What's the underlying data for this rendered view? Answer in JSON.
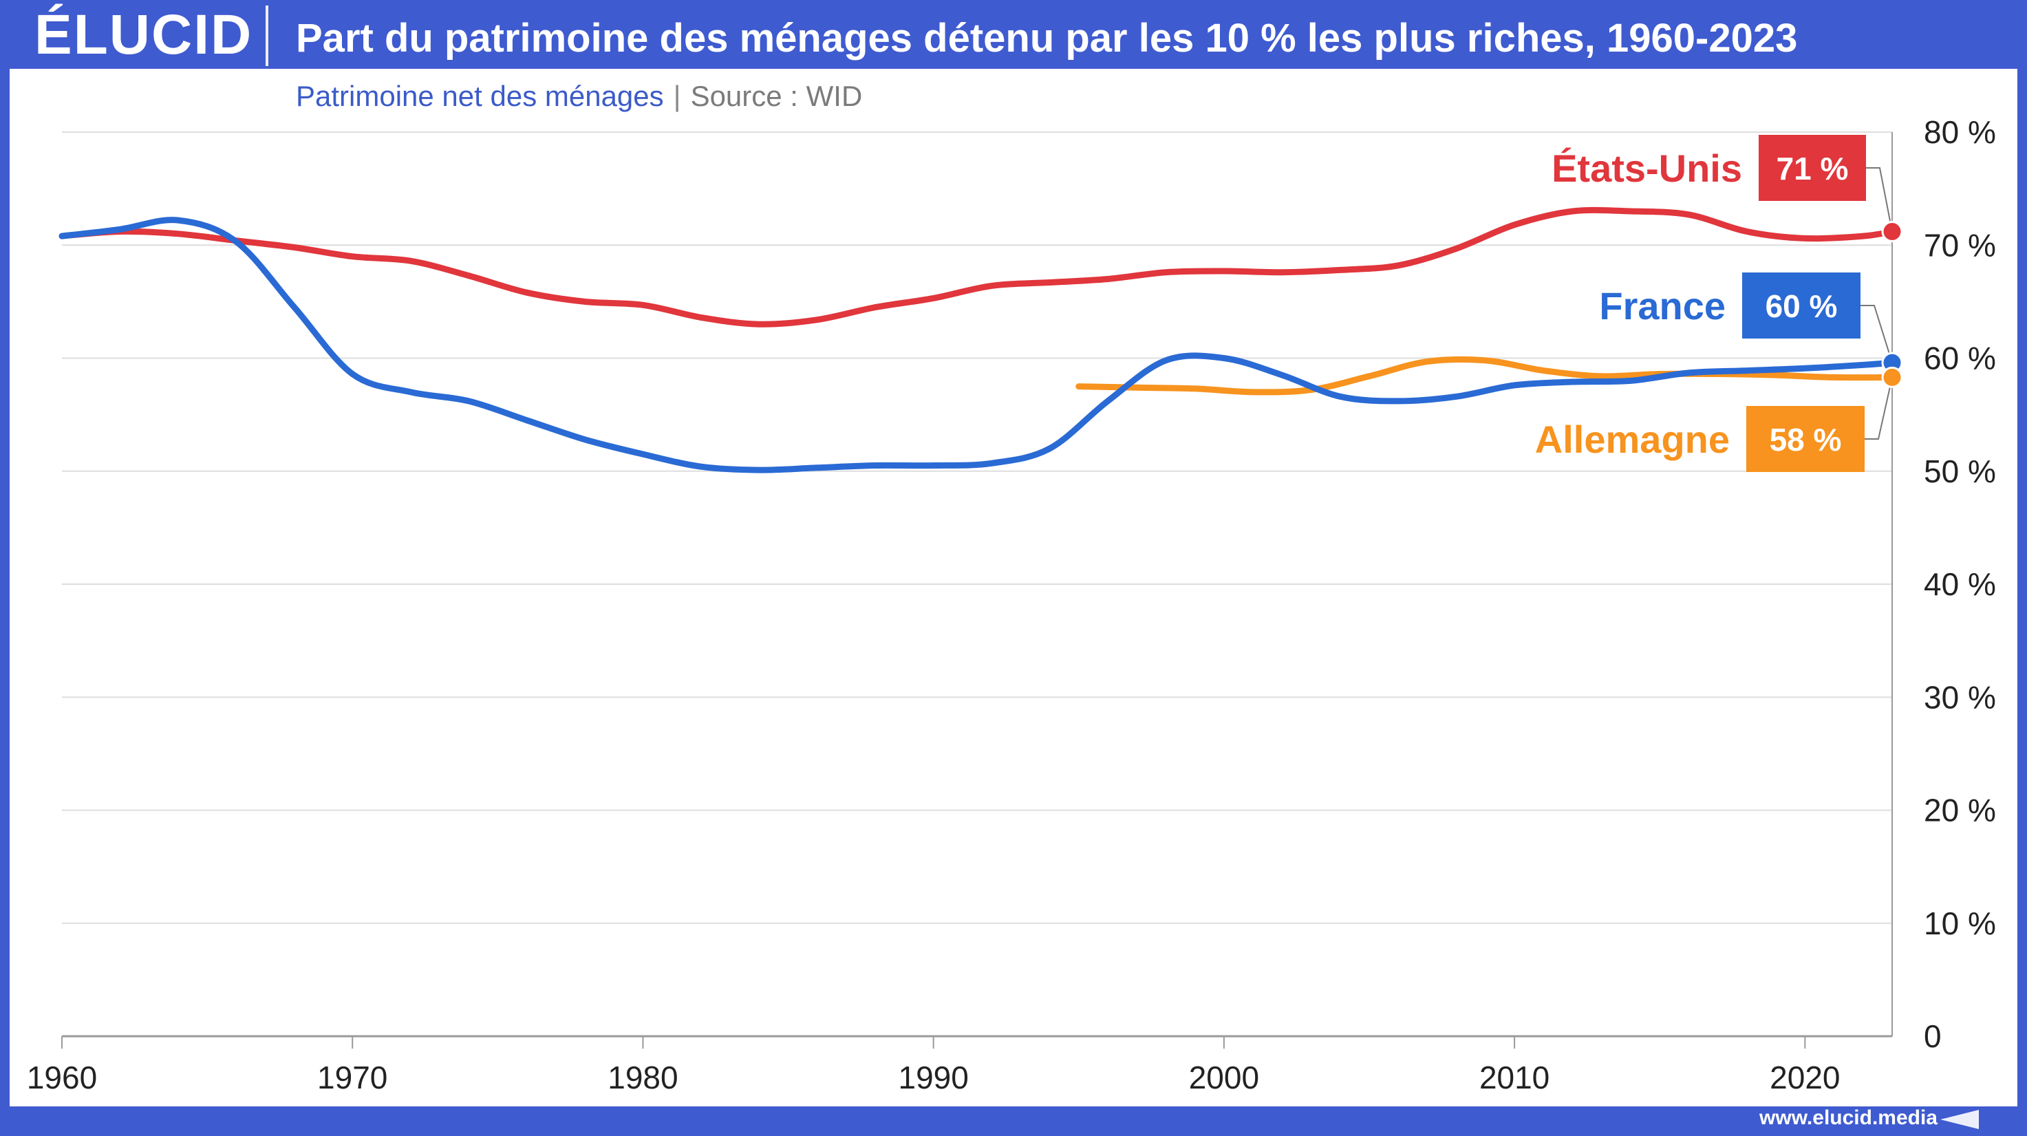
{
  "header": {
    "logo": "ÉLUCID",
    "title": "Part du patrimoine des ménages détenu par les 10 % les plus riches, 1960-2023"
  },
  "subtitle": {
    "measure": "Patrimoine net des ménages",
    "separator": "|",
    "source": "Source : WID"
  },
  "footer": {
    "url": "www.elucid.media"
  },
  "colors": {
    "brand": "#3f5bd0",
    "etats_unis": "#e0363c",
    "france": "#2a6ad4",
    "allemagne": "#f7931e"
  },
  "chart_data": {
    "type": "line",
    "title": "Part du patrimoine des ménages détenu par les 10 % les plus riches, 1960-2023",
    "xlabel": "",
    "ylabel": "",
    "xlim": [
      1960,
      2023
    ],
    "ylim": [
      0,
      80
    ],
    "x_ticks": [
      1960,
      1970,
      1980,
      1990,
      2000,
      2010,
      2020
    ],
    "y_ticks": [
      0,
      10,
      20,
      30,
      40,
      50,
      60,
      70,
      80
    ],
    "y_tick_labels": [
      "0",
      "10 %",
      "20 %",
      "30 %",
      "40 %",
      "50 %",
      "60 %",
      "70 %",
      "80 %"
    ],
    "grid": true,
    "y_axis_position": "right",
    "series": [
      {
        "name": "États-Unis",
        "end_label": "71 %",
        "color": "#e0363c",
        "x": [
          1960,
          1962,
          1964,
          1966,
          1968,
          1970,
          1972,
          1974,
          1976,
          1978,
          1980,
          1982,
          1984,
          1986,
          1988,
          1990,
          1992,
          1994,
          1996,
          1998,
          2000,
          2002,
          2004,
          2006,
          2008,
          2010,
          2012,
          2014,
          2016,
          2018,
          2020,
          2022,
          2023
        ],
        "y": [
          70.8,
          71.2,
          71.0,
          70.4,
          69.8,
          69.0,
          68.6,
          67.3,
          65.8,
          65.0,
          64.7,
          63.6,
          63.0,
          63.4,
          64.5,
          65.3,
          66.4,
          66.7,
          67.0,
          67.6,
          67.7,
          67.6,
          67.8,
          68.2,
          69.7,
          71.8,
          73.0,
          73.0,
          72.7,
          71.2,
          70.6,
          70.8,
          71.2
        ]
      },
      {
        "name": "France",
        "end_label": "60 %",
        "color": "#2a6ad4",
        "x": [
          1960,
          1962,
          1964,
          1966,
          1968,
          1970,
          1972,
          1974,
          1976,
          1978,
          1980,
          1982,
          1984,
          1986,
          1988,
          1990,
          1992,
          1994,
          1996,
          1998,
          2000,
          2002,
          2004,
          2006,
          2008,
          2010,
          2012,
          2014,
          2016,
          2018,
          2020,
          2022,
          2023
        ],
        "y": [
          70.8,
          71.4,
          72.2,
          70.3,
          64.5,
          58.6,
          57.0,
          56.2,
          54.5,
          52.8,
          51.5,
          50.4,
          50.1,
          50.3,
          50.5,
          50.5,
          50.7,
          52.0,
          56.2,
          59.8,
          60.0,
          58.5,
          56.6,
          56.2,
          56.6,
          57.6,
          57.9,
          58.0,
          58.7,
          58.9,
          59.1,
          59.4,
          59.6
        ]
      },
      {
        "name": "Allemagne",
        "end_label": "58 %",
        "color": "#f7931e",
        "x": [
          1995,
          1997,
          1999,
          2001,
          2003,
          2005,
          2007,
          2009,
          2011,
          2013,
          2015,
          2017,
          2019,
          2021,
          2023
        ],
        "y": [
          57.5,
          57.4,
          57.3,
          57.0,
          57.2,
          58.4,
          59.7,
          59.8,
          58.9,
          58.4,
          58.6,
          58.6,
          58.5,
          58.3,
          58.3
        ]
      }
    ]
  }
}
